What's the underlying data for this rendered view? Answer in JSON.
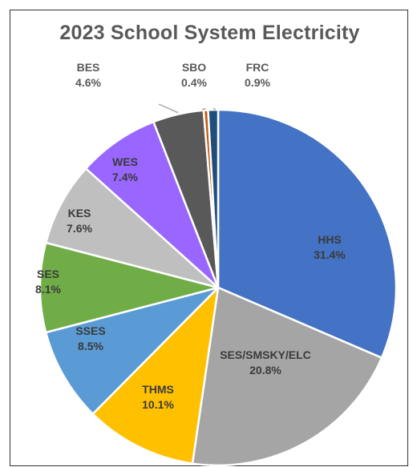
{
  "chart_data": {
    "type": "pie",
    "title": "2023 School System Electricity",
    "slices": [
      {
        "name": "HHS",
        "percent_label": "31.4%",
        "value": 31.4,
        "color": "#4472C4",
        "label_color": "#3A3A3A"
      },
      {
        "name": "SES/SMSKY/ELC",
        "percent_label": "20.8%",
        "value": 20.8,
        "color": "#A5A5A5",
        "label_color": "#3A3A3A"
      },
      {
        "name": "THMS",
        "percent_label": "10.1%",
        "value": 10.1,
        "color": "#FFC000",
        "label_color": "#3A3A3A"
      },
      {
        "name": "SSES",
        "percent_label": "8.5%",
        "value": 8.5,
        "color": "#5B9BD5",
        "label_color": "#3A3A3A"
      },
      {
        "name": "SES",
        "percent_label": "8.1%",
        "value": 8.1,
        "color": "#70AD47",
        "label_color": "#3A3A3A"
      },
      {
        "name": "KES",
        "percent_label": "7.6%",
        "value": 7.6,
        "color": "#BFBFBF",
        "label_color": "#3A3A3A"
      },
      {
        "name": "WES",
        "percent_label": "7.4%",
        "value": 7.4,
        "color": "#9966FF",
        "label_color": "#3A3A3A"
      },
      {
        "name": "BES",
        "percent_label": "4.6%",
        "value": 4.6,
        "color": "#595959",
        "label_color": "#595959"
      },
      {
        "name": "SBO",
        "percent_label": "0.4%",
        "value": 0.4,
        "color": "#C55A11",
        "label_color": "#595959"
      },
      {
        "name": "FRC",
        "percent_label": "0.9%",
        "value": 0.9,
        "color": "#1F4E79",
        "label_color": "#595959"
      }
    ]
  }
}
